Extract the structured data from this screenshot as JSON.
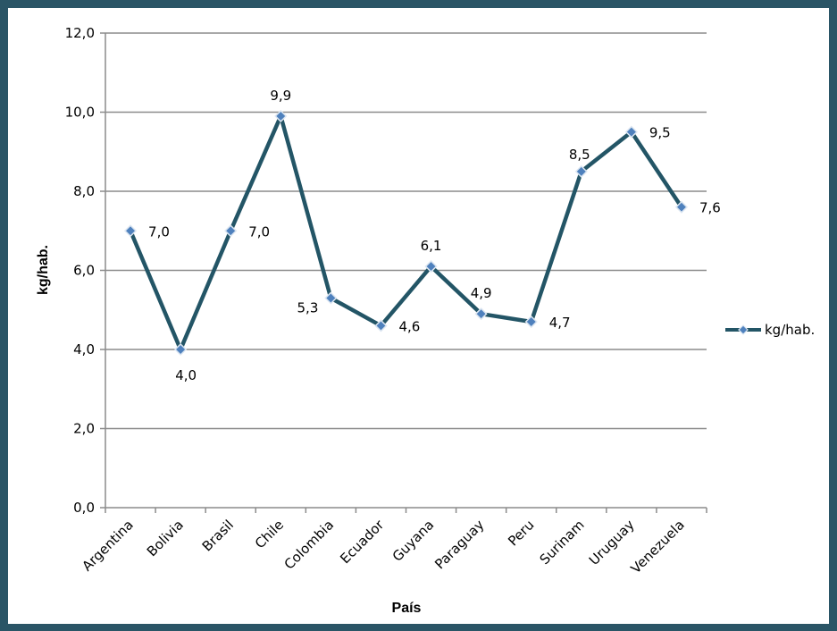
{
  "chart_data": {
    "type": "line",
    "categories": [
      "Argentina",
      "Bolivia",
      "Brasil",
      "Chile",
      "Colombia",
      "Ecuador",
      "Guyana",
      "Paraguay",
      "Peru",
      "Surinam",
      "Uruguay",
      "Venezuela"
    ],
    "series": [
      {
        "name": "kg/hab.",
        "values": [
          7.0,
          4.0,
          7.0,
          9.9,
          5.3,
          4.6,
          6.1,
          4.9,
          4.7,
          8.5,
          9.5,
          7.6
        ],
        "labels": [
          "7,0",
          "4,0",
          "7,0",
          "9,9",
          "5,3",
          "4,6",
          "6,1",
          "4,9",
          "4,7",
          "8,5",
          "9,5",
          "7,6"
        ],
        "color": "#235566",
        "marker_color": "#4f81bd"
      }
    ],
    "xlabel": "País",
    "ylabel": "kg/hab.",
    "ylim": [
      0,
      12
    ],
    "yticks": [
      0,
      2,
      4,
      6,
      8,
      10,
      12
    ],
    "ytick_labels": [
      "0,0",
      "2,0",
      "4,0",
      "6,0",
      "8,0",
      "10,0",
      "12,0"
    ],
    "grid": true,
    "legend": "right"
  }
}
